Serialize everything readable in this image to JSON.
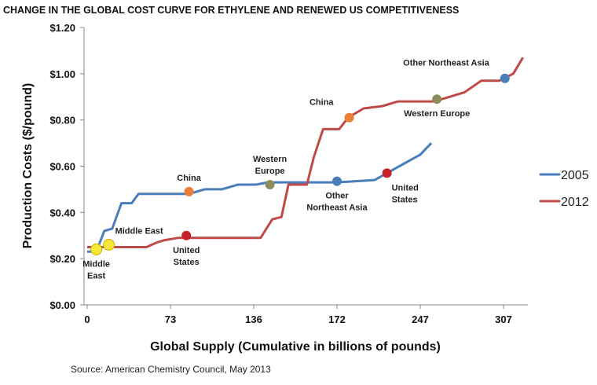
{
  "chart_data": {
    "type": "line",
    "title": "CHANGE IN THE GLOBAL COST CURVE FOR ETHYLENE AND RENEWED US COMPETITIVENESS",
    "xlabel": "Global Supply (Cumulative in billions of pounds)",
    "ylabel": "Production Costs ($/pound)",
    "x_ticks": [
      "0",
      "73",
      "136",
      "172",
      "247",
      "307"
    ],
    "y_ticks": [
      "$0.00",
      "$0.20",
      "$0.40",
      "$0.60",
      "$0.80",
      "$1.00",
      "$1.20"
    ],
    "ylim": [
      0,
      1.2
    ],
    "grid": false,
    "legend_position": "right",
    "series": [
      {
        "name": "2005",
        "color": "#4a7ebb",
        "points": [
          [
            0,
            0.23
          ],
          [
            8,
            0.23
          ],
          [
            15,
            0.32
          ],
          [
            22,
            0.33
          ],
          [
            30,
            0.44
          ],
          [
            39,
            0.44
          ],
          [
            45,
            0.48
          ],
          [
            87,
            0.48
          ],
          [
            99,
            0.5
          ],
          [
            112,
            0.5
          ],
          [
            124,
            0.52
          ],
          [
            137,
            0.52
          ],
          [
            142,
            0.53
          ],
          [
            172,
            0.53
          ],
          [
            206,
            0.54
          ],
          [
            217,
            0.57
          ],
          [
            247,
            0.65
          ],
          [
            255,
            0.7
          ]
        ]
      },
      {
        "name": "2012",
        "color": "#be4b48",
        "points": [
          [
            0,
            0.25
          ],
          [
            52,
            0.25
          ],
          [
            61,
            0.27
          ],
          [
            68,
            0.28
          ],
          [
            79,
            0.29
          ],
          [
            139,
            0.29
          ],
          [
            144,
            0.37
          ],
          [
            148,
            0.38
          ],
          [
            151,
            0.52
          ],
          [
            159,
            0.52
          ],
          [
            162,
            0.64
          ],
          [
            166,
            0.76
          ],
          [
            174,
            0.76
          ],
          [
            182,
            0.81
          ],
          [
            196,
            0.85
          ],
          [
            213,
            0.86
          ],
          [
            227,
            0.88
          ],
          [
            257,
            0.88
          ],
          [
            268,
            0.9
          ],
          [
            279,
            0.92
          ],
          [
            291,
            0.97
          ],
          [
            304,
            0.97
          ],
          [
            314,
            1.0
          ],
          [
            321,
            1.07
          ]
        ]
      }
    ],
    "markers": [
      {
        "x": 8,
        "y": 0.24,
        "color": "#f5e83a",
        "label": [
          "Middle",
          "East"
        ],
        "pos": "below"
      },
      {
        "x": 19,
        "y": 0.26,
        "color": "#f5e83a",
        "label": [
          "Middle East"
        ],
        "pos": "above-right"
      },
      {
        "x": 87,
        "y": 0.49,
        "color": "#e8803a",
        "label": [
          "China"
        ],
        "pos": "above"
      },
      {
        "x": 143,
        "y": 0.52,
        "color": "#8c8c5a",
        "label": [
          "Western",
          "Europe"
        ],
        "pos": "above"
      },
      {
        "x": 172,
        "y": 0.535,
        "color": "#4a7ebb",
        "label": [
          "Other",
          "Northeast Asia"
        ],
        "pos": "below"
      },
      {
        "x": 217,
        "y": 0.57,
        "color": "#c8202a",
        "label": [
          "United",
          "States"
        ],
        "pos": "below-right"
      },
      {
        "x": 85,
        "y": 0.3,
        "color": "#c8202a",
        "label": [
          "United",
          "States"
        ],
        "pos": "below"
      },
      {
        "x": 183,
        "y": 0.81,
        "color": "#e8803a",
        "label": [
          "China"
        ],
        "pos": "above-left"
      },
      {
        "x": 259,
        "y": 0.89,
        "color": "#8c8c5a",
        "label": [
          "Western Europe"
        ],
        "pos": "below"
      },
      {
        "x": 308,
        "y": 0.98,
        "color": "#4a7ebb",
        "label": [
          "Other Northeast Asia"
        ],
        "pos": "above-left"
      }
    ]
  },
  "source": "Source: American Chemistry Council, May 2013"
}
